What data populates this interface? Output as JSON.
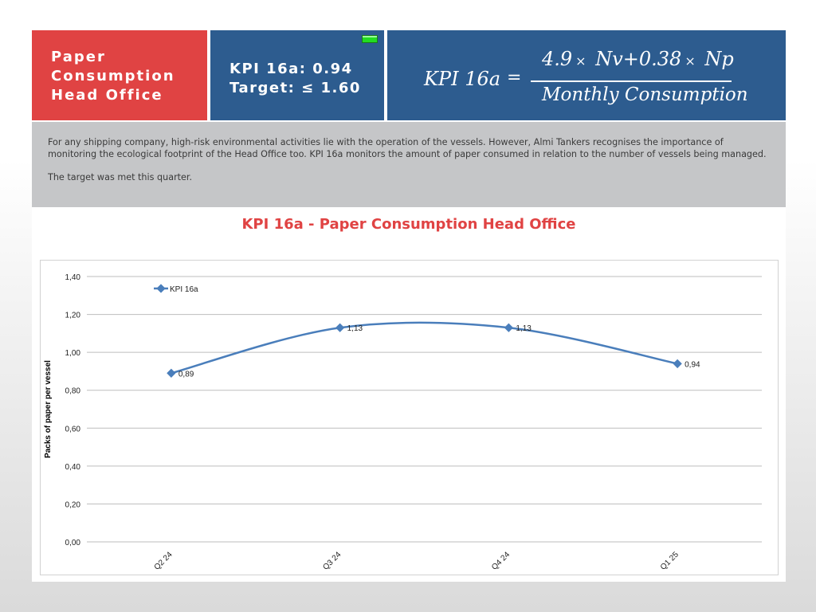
{
  "header": {
    "title_lines": [
      "Paper",
      "Consumption",
      "Head Office"
    ],
    "kpi_value": "KPI 16a: 0.94",
    "target": "Target: ≤ 1.60",
    "status_color": "#22dd22"
  },
  "formula": {
    "lhs": "KPI 16a",
    "equals": "=",
    "numerator_a": "4.9",
    "times1": "×",
    "numerator_b": " Nv+0.38",
    "times2": "×",
    "numerator_c": " Np",
    "denominator": "Monthly Consumption"
  },
  "description": {
    "paragraph1": "For any shipping company, high-risk environmental activities lie with the operation of the vessels. However, Almi Tankers recognises the importance of monitoring the ecological footprint of the Head Office too. KPI 16a monitors the amount of paper consumed in relation to the number of vessels being managed.",
    "paragraph2": "The target was met this quarter."
  },
  "chart_title": "KPI 16a  - Paper Consumption Head Office",
  "colors": {
    "red": "#e04343",
    "blue": "#2d5c8f",
    "grey": "#c5c6c8",
    "series": "#4a7ebb"
  },
  "chart_data": {
    "type": "line",
    "title": "KPI 16a  - Paper Consumption Head Office",
    "xlabel": "",
    "ylabel": "Packs of paper per vessel",
    "categories": [
      "Q2 24",
      "Q3 24",
      "Q4 24",
      "Q1 25"
    ],
    "series": [
      {
        "name": "KPI 16a",
        "values": [
          0.89,
          1.13,
          1.13,
          0.94
        ],
        "labels": [
          "0,89",
          "1,13",
          "1,13",
          "0,94"
        ]
      }
    ],
    "ylim": [
      0,
      1.4
    ],
    "yticks": [
      0,
      0.2,
      0.4,
      0.6,
      0.8,
      1.0,
      1.2,
      1.4
    ],
    "ytick_labels": [
      "0,00",
      "0,20",
      "0,40",
      "0,60",
      "0,80",
      "1,00",
      "1,20",
      "1,40"
    ],
    "smooth": true,
    "grid": true,
    "legend": "top-left"
  }
}
